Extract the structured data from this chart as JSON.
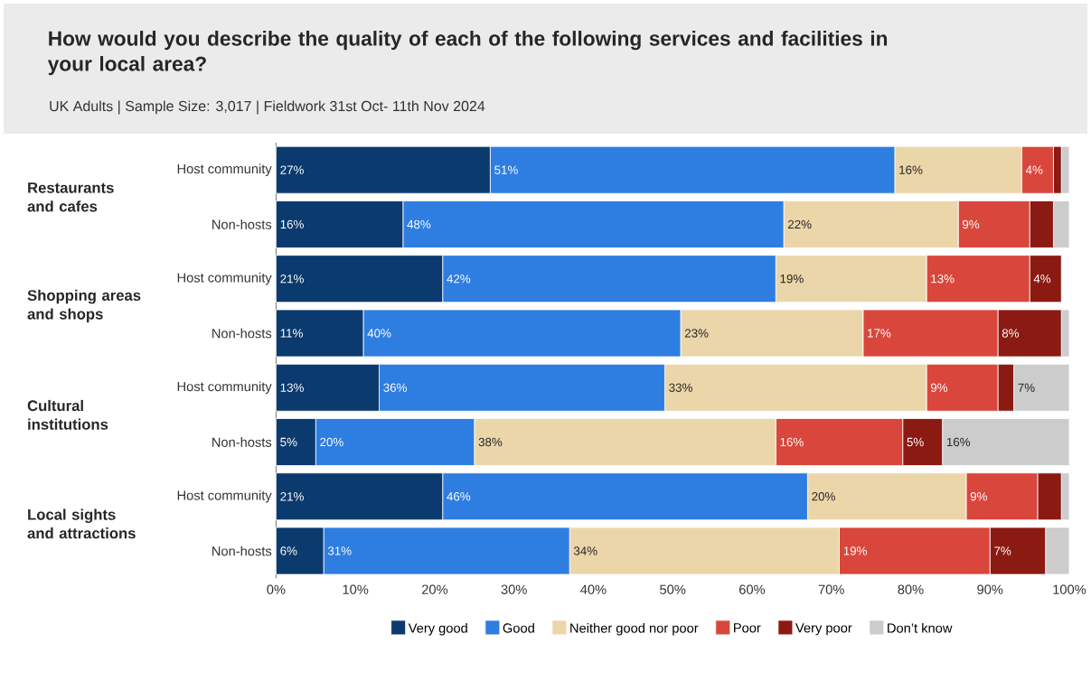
{
  "chart_data": {
    "type": "bar",
    "orientation": "horizontal",
    "stacked": true,
    "title": "How would you describe the quality of each of the following services and facilities in your local area?",
    "subtitle": "UK Adults | Sample Size: 3,017 | Fieldwork 31st Oct- 11th Nov 2024",
    "categories": [
      "Host community",
      "Non-hosts",
      "Host community",
      "Non-hosts",
      "Host community",
      "Non-hosts",
      "Host community",
      "Non-hosts"
    ],
    "annotations": [
      "Restaurants and cafes",
      "Shopping areas and shops",
      "Cultural institutions",
      "Local sights and attractions"
    ],
    "series": [
      {
        "name": "Very good",
        "color": "#0b3a6e",
        "values": [
          27,
          16,
          21,
          11,
          13,
          5,
          21,
          6
        ],
        "value_labels": [
          "27%",
          "16%",
          "21%",
          "11%",
          "13%",
          "5%",
          "21%",
          "6%"
        ]
      },
      {
        "name": "Good",
        "color": "#2e7de1",
        "values": [
          51,
          48,
          42,
          40,
          36,
          20,
          46,
          31
        ],
        "value_labels": [
          "51%",
          "48%",
          "42%",
          "40%",
          "36%",
          "20%",
          "46%",
          "31%"
        ]
      },
      {
        "name": "Neither good nor poor",
        "color": "#ebd6aa",
        "values": [
          16,
          22,
          19,
          23,
          33,
          38,
          20,
          34
        ],
        "value_labels": [
          "16%",
          "22%",
          "19%",
          "23%",
          "33%",
          "38%",
          "20%",
          "34%"
        ]
      },
      {
        "name": "Poor",
        "color": "#d9463c",
        "values": [
          4,
          9,
          13,
          17,
          9,
          16,
          9,
          19
        ],
        "value_labels": [
          "4%",
          "9%",
          "13%",
          "17%",
          "9%",
          "16%",
          "9%",
          "19%"
        ]
      },
      {
        "name": "Very poor",
        "color": "#8b1a12",
        "values": [
          1,
          3,
          4,
          8,
          2,
          5,
          3,
          7
        ],
        "value_labels": [
          null,
          null,
          "4%",
          "8%",
          null,
          "5%",
          null,
          "7%"
        ]
      },
      {
        "name": "Don’t know",
        "color": "#cccccc",
        "values": [
          1,
          2,
          0,
          1,
          7,
          16,
          1,
          3
        ],
        "value_labels": [
          null,
          null,
          null,
          null,
          "7%",
          "16%",
          null,
          null
        ]
      }
    ],
    "xlim": [
      0,
      100
    ],
    "xticks": [
      {
        "value": 0,
        "label": "0%"
      },
      {
        "value": 10,
        "label": "10%"
      },
      {
        "value": 20,
        "label": "20%"
      },
      {
        "value": 30,
        "label": "30%"
      },
      {
        "value": 40,
        "label": "40%"
      },
      {
        "value": 50,
        "label": "50%"
      },
      {
        "value": 60,
        "label": "60%"
      },
      {
        "value": 70,
        "label": "70%"
      },
      {
        "value": 80,
        "label": "80%"
      },
      {
        "value": 90,
        "label": "90%"
      },
      {
        "value": 100,
        "label": "100%"
      }
    ],
    "legend": "bottom",
    "grid": false
  }
}
